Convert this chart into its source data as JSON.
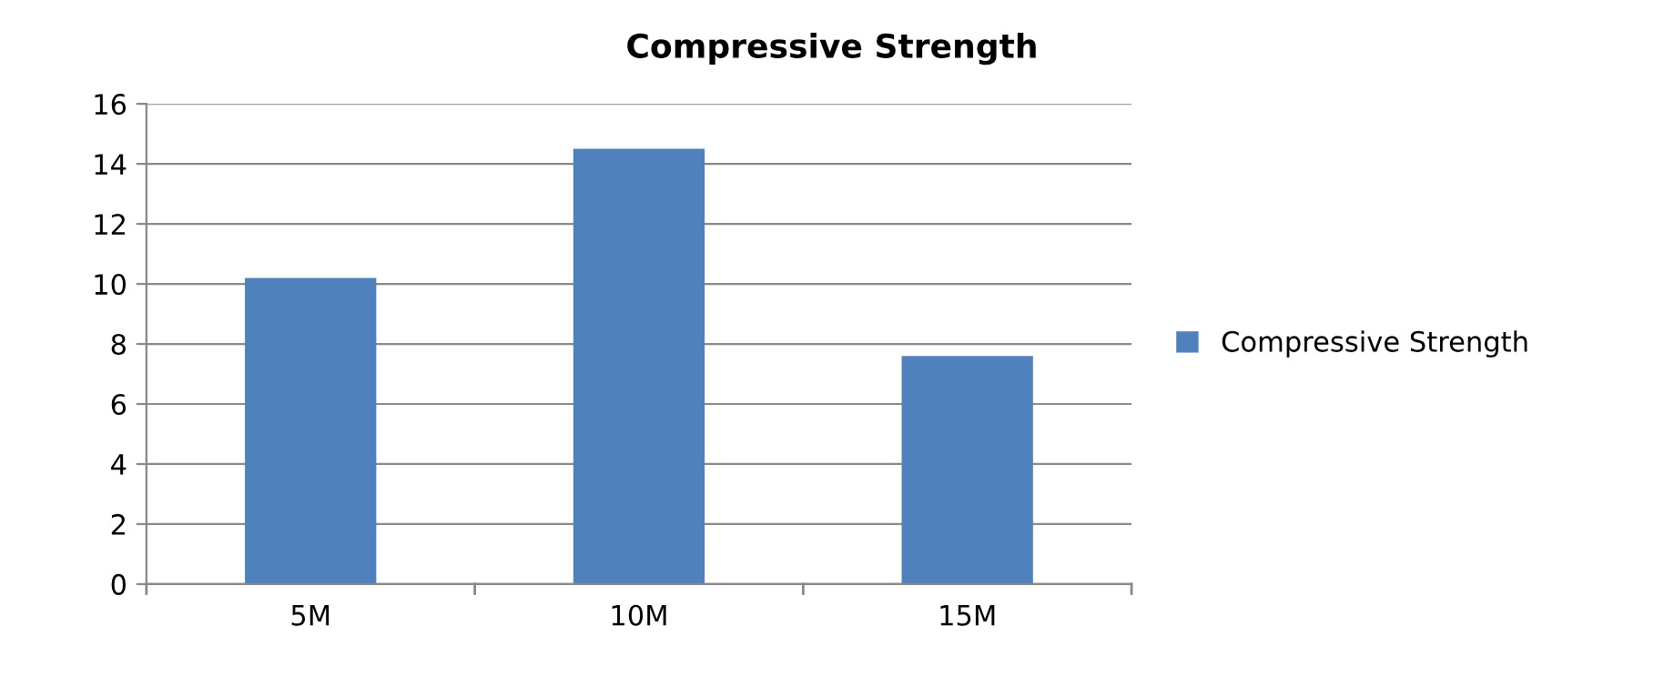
{
  "chart_data": {
    "type": "bar",
    "title": "Compressive Strength",
    "categories": [
      "5M",
      "10M",
      "15M"
    ],
    "series": [
      {
        "name": "Compressive Strength",
        "color": "#4f81bd",
        "values": [
          10.2,
          14.5,
          7.6
        ]
      }
    ],
    "ylim": [
      0,
      16
    ],
    "yticks": [
      0,
      2,
      4,
      6,
      8,
      10,
      12,
      14,
      16
    ],
    "grid": "y",
    "legend": "right"
  }
}
